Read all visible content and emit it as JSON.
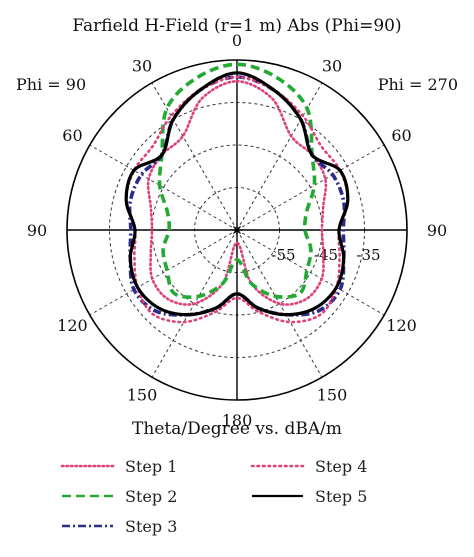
{
  "chart_data": {
    "type": "polar-line",
    "title": "Farfield H-Field (r=1 m) Abs (Phi=90)",
    "xlabel": "Theta/Degree vs. dBA/m",
    "left_phi_label": "Phi = 90",
    "right_phi_label": "Phi = 270",
    "angle_tick_labels": [
      {
        "angle": 0,
        "label": "0"
      },
      {
        "angle": 30,
        "label": "30"
      },
      {
        "angle": 60,
        "label": "60"
      },
      {
        "angle": 90,
        "label": "90"
      },
      {
        "angle": 120,
        "label": "120"
      },
      {
        "angle": 150,
        "label": "150"
      },
      {
        "angle": 180,
        "label": "180"
      },
      {
        "angle": 210,
        "label": "150"
      },
      {
        "angle": 240,
        "label": "120"
      },
      {
        "angle": 270,
        "label": "90"
      },
      {
        "angle": 300,
        "label": "60"
      },
      {
        "angle": 330,
        "label": "30"
      }
    ],
    "radial_range": [
      -65,
      -25
    ],
    "radial_tick_labels": [
      {
        "value": -55,
        "label": "-55"
      },
      {
        "value": -45,
        "label": "-45"
      },
      {
        "value": -35,
        "label": "-35"
      }
    ],
    "grid": true,
    "legend_placement": "bottom",
    "theta_deg": [
      0,
      15,
      30,
      45,
      60,
      75,
      90,
      105,
      120,
      135,
      150,
      165,
      180,
      195,
      210,
      225,
      240,
      255,
      270,
      285,
      300,
      315,
      330,
      345
    ],
    "series": [
      {
        "name": "Step 1",
        "color": "#e0407a",
        "dash": "1.5 3",
        "values": [
          -30,
          -33,
          -39.5,
          -40,
          -41,
          -44,
          -45,
          -44,
          -42,
          -42,
          -45,
          -52,
          -62,
          -52,
          -45,
          -42,
          -42,
          -44,
          -45,
          -44,
          -41,
          -40,
          -39.5,
          -33
        ]
      },
      {
        "name": "Step 2",
        "color": "#22aa33",
        "dash": "9 5",
        "values": [
          -26,
          -28,
          -32,
          -40,
          -44,
          -48,
          -49,
          -47,
          -46,
          -44,
          -47,
          -52,
          -58,
          -52,
          -47,
          -44,
          -46,
          -47,
          -49,
          -48,
          -44,
          -40,
          -32,
          -28
        ]
      },
      {
        "name": "Step 3",
        "color": "#2b2b8c",
        "dash": "8 3 2 3",
        "values": [
          -29,
          -31,
          -35,
          -40,
          -39,
          -39,
          -40,
          -39,
          -37,
          -38,
          -42,
          -46,
          -50,
          -46,
          -42,
          -38,
          -37,
          -39,
          -40,
          -39,
          -39,
          -40,
          -35,
          -31
        ]
      },
      {
        "name": "Step 4",
        "color": "#e0407a",
        "dash": "1.5 4",
        "values": [
          -29,
          -31,
          -34,
          -37,
          -37,
          -38,
          -41,
          -40,
          -38,
          -37,
          -40,
          -45,
          -49,
          -45,
          -40,
          -37,
          -38,
          -40,
          -41,
          -38,
          -37,
          -37,
          -34,
          -31
        ]
      },
      {
        "name": "Step 5",
        "color": "#000000",
        "dash": "",
        "values": [
          -28,
          -31,
          -35,
          -40,
          -37,
          -38,
          -41,
          -39,
          -38,
          -39,
          -42,
          -46,
          -50,
          -46,
          -42,
          -39,
          -38,
          -39,
          -41,
          -38,
          -37,
          -40,
          -35,
          -31
        ]
      }
    ]
  }
}
